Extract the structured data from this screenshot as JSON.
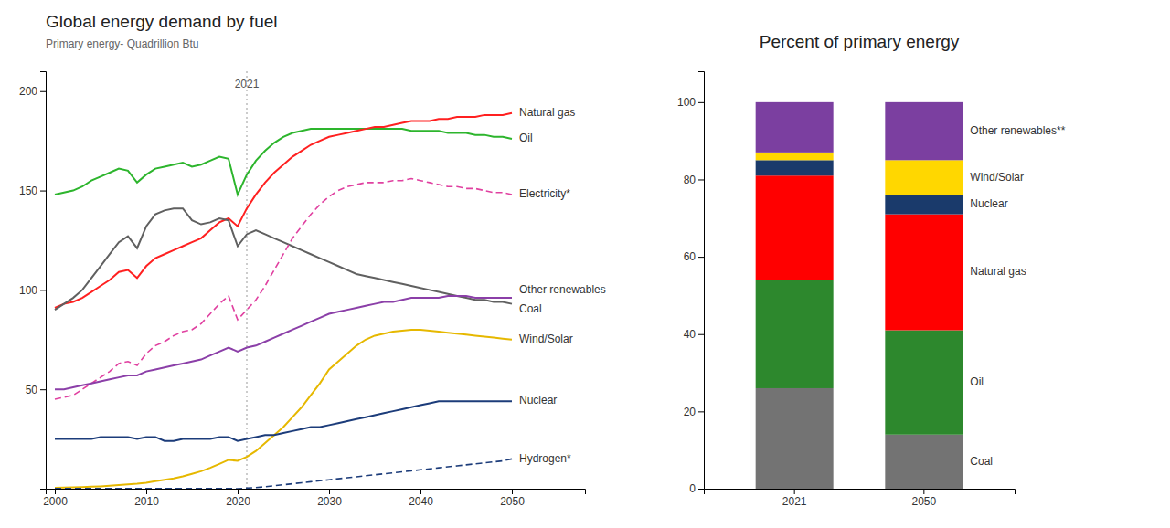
{
  "chart_data": [
    {
      "type": "line",
      "title": "Global energy demand by fuel",
      "subtitle": "Primary energy- Quadrillion Btu",
      "x": [
        2000,
        2001,
        2002,
        2003,
        2004,
        2005,
        2006,
        2007,
        2008,
        2009,
        2010,
        2011,
        2012,
        2013,
        2014,
        2015,
        2016,
        2017,
        2018,
        2019,
        2020,
        2021,
        2022,
        2023,
        2024,
        2025,
        2026,
        2027,
        2028,
        2029,
        2030,
        2031,
        2032,
        2033,
        2034,
        2035,
        2036,
        2037,
        2038,
        2039,
        2040,
        2041,
        2042,
        2043,
        2044,
        2045,
        2046,
        2047,
        2048,
        2049,
        2050
      ],
      "series": [
        {
          "color": "#2db52d",
          "line_style": "solid",
          "values": [
            148,
            149,
            150,
            152,
            155,
            157,
            159,
            161,
            160,
            154,
            158,
            161,
            162,
            163,
            164,
            162,
            163,
            165,
            167,
            166,
            148,
            158,
            165,
            170,
            174,
            177,
            179,
            180,
            181,
            181,
            181,
            181,
            181,
            181,
            181,
            181,
            181,
            181,
            181,
            180,
            180,
            180,
            180,
            179,
            179,
            179,
            178,
            178,
            177,
            177,
            176
          ]
        },
        {
          "color": "#ff2020",
          "line_style": "solid",
          "values": [
            91,
            93,
            94,
            96,
            99,
            102,
            105,
            109,
            110,
            106,
            112,
            116,
            118,
            120,
            122,
            124,
            126,
            130,
            134,
            136,
            132,
            141,
            148,
            154,
            159,
            163,
            167,
            170,
            173,
            175,
            177,
            178,
            179,
            180,
            181,
            182,
            182,
            183,
            184,
            185,
            185,
            185,
            186,
            186,
            187,
            187,
            187,
            188,
            188,
            188,
            189
          ]
        },
        {
          "color": "#606060",
          "line_style": "solid",
          "values": [
            90,
            93,
            96,
            100,
            106,
            112,
            118,
            124,
            127,
            121,
            132,
            138,
            140,
            141,
            141,
            135,
            133,
            134,
            136,
            135,
            122,
            128,
            130,
            128,
            126,
            124,
            122,
            120,
            118,
            116,
            114,
            112,
            110,
            108,
            107,
            106,
            105,
            104,
            103,
            102,
            101,
            100,
            99,
            98,
            97,
            96,
            95,
            95,
            94,
            94,
            93
          ]
        },
        {
          "color": "#e040a0",
          "line_style": "dashed",
          "values": [
            45,
            46,
            47,
            50,
            53,
            56,
            59,
            63,
            64,
            62,
            68,
            72,
            74,
            77,
            79,
            80,
            83,
            88,
            93,
            97,
            85,
            90,
            95,
            102,
            110,
            118,
            126,
            132,
            138,
            143,
            147,
            150,
            152,
            153,
            154,
            154,
            154,
            155,
            155,
            156,
            155,
            154,
            153,
            152,
            152,
            151,
            151,
            150,
            149,
            149,
            148
          ]
        },
        {
          "color": "#8b3fa8",
          "line_style": "solid",
          "values": [
            50,
            50,
            51,
            52,
            53,
            54,
            55,
            56,
            57,
            57,
            59,
            60,
            61,
            62,
            63,
            64,
            65,
            67,
            69,
            71,
            69,
            71,
            72,
            74,
            76,
            78,
            80,
            82,
            84,
            86,
            88,
            89,
            90,
            91,
            92,
            93,
            94,
            94,
            95,
            96,
            96,
            96,
            96,
            97,
            97,
            97,
            96,
            96,
            96,
            96,
            96
          ]
        },
        {
          "color": "#e6b800",
          "line_style": "solid",
          "values": [
            0.5,
            0.6,
            0.7,
            0.8,
            1.0,
            1.2,
            1.5,
            1.8,
            2.2,
            2.5,
            3.0,
            3.8,
            4.5,
            5.2,
            6.2,
            7.5,
            8.8,
            10.5,
            12.5,
            14.5,
            14.0,
            16.0,
            19.0,
            23.0,
            27.0,
            31.0,
            36.0,
            41.0,
            47.0,
            53.0,
            60.0,
            64.0,
            68.0,
            72.0,
            75.0,
            77.0,
            78.0,
            79.0,
            79.5,
            80.0,
            80.0,
            79.5,
            79.0,
            78.5,
            78.0,
            77.5,
            77.0,
            76.5,
            76.0,
            75.5,
            75.0
          ]
        },
        {
          "color": "#1c3c7a",
          "line_style": "solid",
          "values": [
            25,
            25,
            25,
            25,
            25,
            26,
            26,
            26,
            26,
            25,
            26,
            26,
            24,
            24,
            25,
            25,
            25,
            25,
            26,
            26,
            24,
            25,
            26,
            27,
            27,
            28,
            29,
            30,
            31,
            31,
            32,
            33,
            34,
            35,
            36,
            37,
            38,
            39,
            40,
            41,
            42,
            43,
            44,
            44,
            44,
            44,
            44,
            44,
            44,
            44,
            44
          ]
        },
        {
          "color": "#1c3c7a",
          "line_style": "dashed",
          "values": [
            0.1,
            0.1,
            0.1,
            0.1,
            0.1,
            0.1,
            0.1,
            0.1,
            0.1,
            0.1,
            0.1,
            0.1,
            0.1,
            0.1,
            0.1,
            0.1,
            0.1,
            0.1,
            0.1,
            0.1,
            0.0,
            0.3,
            0.6,
            1.0,
            1.5,
            2.0,
            2.5,
            3.0,
            3.5,
            4.0,
            4.5,
            5.0,
            5.5,
            6.0,
            6.5,
            7.0,
            7.5,
            8.0,
            8.5,
            9.0,
            9.5,
            10.0,
            10.5,
            11.0,
            11.5,
            12.0,
            12.5,
            13.0,
            13.5,
            14.0,
            15.0
          ]
        }
      ],
      "annotations": [
        {
          "text": "2021",
          "x": 2021,
          "y": 201
        },
        {
          "text": "Oil",
          "y": 176
        },
        {
          "text": "Natural gas",
          "y": 189
        },
        {
          "text": "Electricity*",
          "y": 148
        },
        {
          "text": "Other renewables",
          "y": 100
        },
        {
          "text": "Coal",
          "y": 90
        },
        {
          "text": "Wind/Solar",
          "y": 75
        },
        {
          "text": "Nuclear",
          "y": 44
        },
        {
          "text": "Hydrogen*",
          "y": 15
        }
      ],
      "xlim": [
        1999,
        2058
      ],
      "xticks": [
        2000,
        2010,
        2020,
        2030,
        2040,
        2050
      ],
      "ylim": [
        0,
        210
      ],
      "yticks": [
        50,
        100,
        150,
        200
      ]
    },
    {
      "type": "bar",
      "title": "Percent of primary energy",
      "stacked": true,
      "categories": [
        "2021",
        "2050"
      ],
      "series": [
        {
          "name": "Coal",
          "color": "#737373",
          "values": [
            26,
            14
          ]
        },
        {
          "name": "Oil",
          "color": "#2d882d",
          "values": [
            28,
            27
          ]
        },
        {
          "name": "Natural gas",
          "color": "#ff0000",
          "values": [
            27,
            30
          ]
        },
        {
          "name": "Nuclear",
          "color": "#1a3a6b",
          "values": [
            4,
            5
          ]
        },
        {
          "name": "Wind/Solar",
          "color": "#ffd700",
          "values": [
            2,
            9
          ]
        },
        {
          "name": "Other renewables**",
          "color": "#7b3fa0",
          "values": [
            13,
            15
          ]
        }
      ],
      "ylim": [
        0,
        108
      ],
      "yticks": [
        0,
        20,
        40,
        60,
        80,
        100
      ]
    }
  ]
}
